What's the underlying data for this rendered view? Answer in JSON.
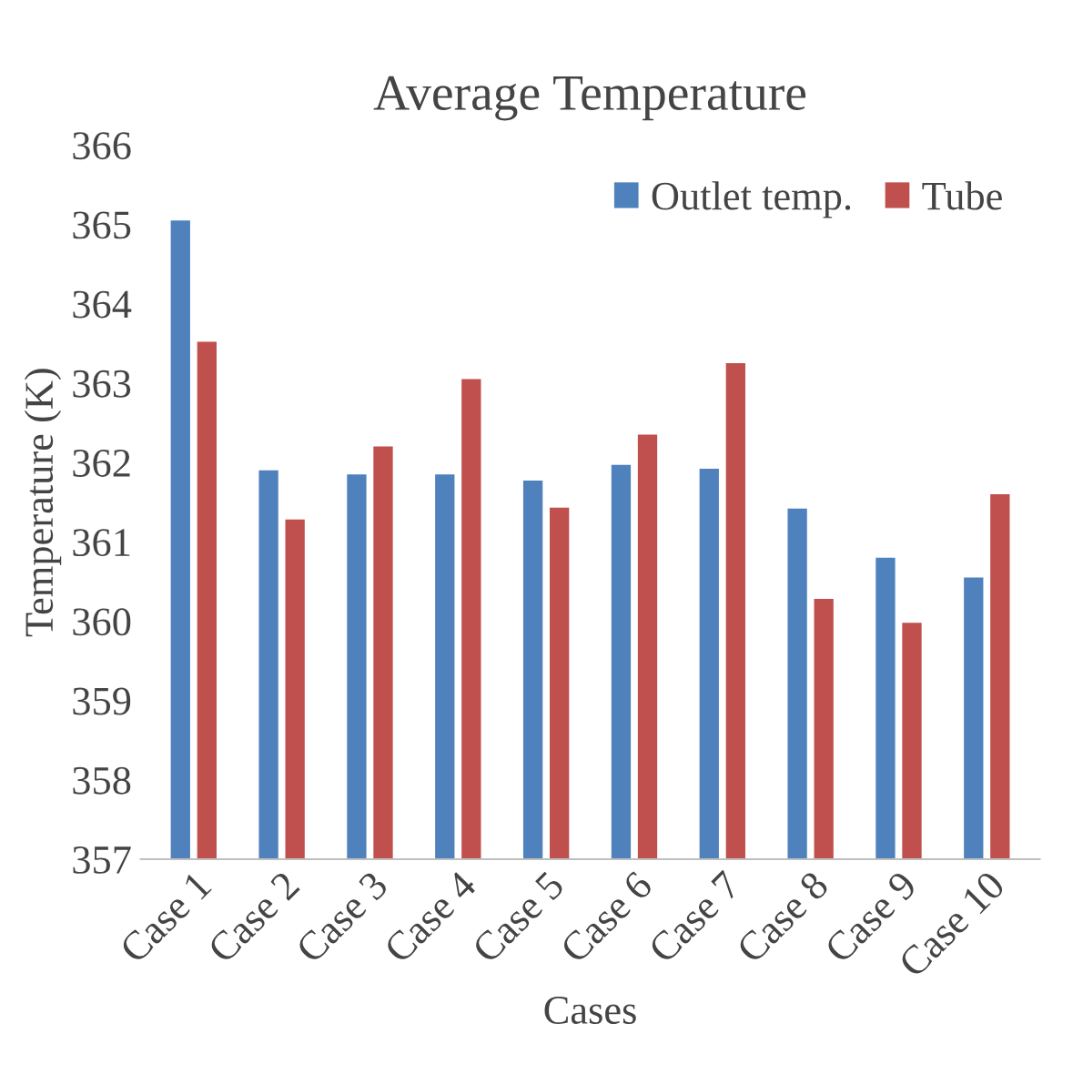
{
  "chart_data": {
    "type": "bar",
    "title": "Average Temperature",
    "xlabel": "Cases",
    "ylabel": "Temperature (K)",
    "categories": [
      "Case 1",
      "Case 2",
      "Case 3",
      "Case 4",
      "Case 5",
      "Case 6",
      "Case 7",
      "Case 8",
      "Case 9",
      "Case 10"
    ],
    "series": [
      {
        "name": "Outlet temp.",
        "color": "#4f81bd",
        "values": [
          365.05,
          361.9,
          361.85,
          361.85,
          361.77,
          361.97,
          361.92,
          361.42,
          360.8,
          360.55
        ]
      },
      {
        "name": "Tube",
        "color": "#c0504d",
        "values": [
          363.52,
          361.28,
          362.2,
          363.05,
          361.43,
          362.35,
          363.25,
          360.28,
          359.98,
          361.6
        ]
      }
    ],
    "ylim": [
      357,
      366
    ],
    "yticks": [
      357,
      358,
      359,
      360,
      361,
      362,
      363,
      364,
      365,
      366
    ],
    "grid": false,
    "legend": "top right"
  }
}
